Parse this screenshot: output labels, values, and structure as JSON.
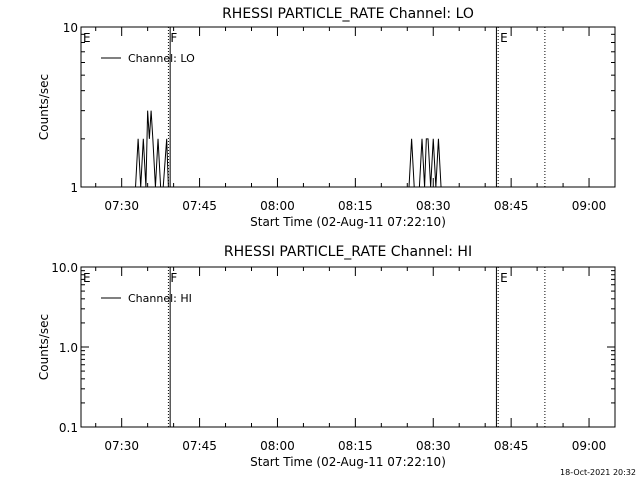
{
  "colors": {
    "background": "#ffffff",
    "ink": "#000000"
  },
  "footer": {
    "timestamp": "18-Oct-2021 20:32"
  },
  "chart_data": [
    {
      "type": "line",
      "title": "RHESSI PARTICLE_RATE Channel: LO",
      "xlabel": "Start Time (02-Aug-11 07:22:10)",
      "ylabel": "Counts/sec",
      "yscale": "log",
      "ylim": [
        1,
        10
      ],
      "y_tick_labels": [
        "1",
        "10"
      ],
      "y_tick_values": [
        1,
        10
      ],
      "xlim": [
        "07:22:10",
        "09:05:00"
      ],
      "x_tick_labels": [
        "07:30",
        "07:45",
        "08:00",
        "08:15",
        "08:30",
        "08:45",
        "09:00"
      ],
      "legend": {
        "position": "top-left",
        "entries": [
          "Channel: LO"
        ]
      },
      "markers": [
        {
          "label": "E",
          "time": "07:22:10",
          "style": "none"
        },
        {
          "label": "F",
          "time": "07:39:00",
          "style": "dotted"
        },
        {
          "label": "",
          "time": "07:39:20",
          "style": "solid"
        },
        {
          "label": "",
          "time": "08:42:10",
          "style": "solid"
        },
        {
          "label": "E",
          "time": "08:42:30",
          "style": "dotted"
        },
        {
          "label": "",
          "time": "08:51:30",
          "style": "dotted"
        }
      ],
      "series": [
        {
          "name": "Channel: LO",
          "x": [
            "07:32:40",
            "07:33:10",
            "07:33:40",
            "07:34:10",
            "07:34:40",
            "07:35:00",
            "07:35:20",
            "07:35:40",
            "07:36:00",
            "07:36:30",
            "07:37:00",
            "07:37:30",
            "07:38:00",
            "07:38:40",
            "07:39:00",
            "08:25:20",
            "08:25:50",
            "08:26:20",
            "08:26:50",
            "08:27:20",
            "08:27:50",
            "08:28:20",
            "08:28:40",
            "08:29:00",
            "08:29:30",
            "08:30:00",
            "08:30:30",
            "08:31:00",
            "08:31:30"
          ],
          "values": [
            1,
            2,
            1,
            2,
            1,
            3,
            2,
            3,
            2,
            1,
            2,
            1,
            1,
            2,
            1,
            1,
            2,
            1,
            1,
            1,
            2,
            1,
            2,
            2,
            1,
            2,
            1,
            2,
            1
          ]
        }
      ]
    },
    {
      "type": "line",
      "title": "RHESSI PARTICLE_RATE Channel: HI",
      "xlabel": "Start Time (02-Aug-11 07:22:10)",
      "ylabel": "Counts/sec",
      "yscale": "log",
      "ylim": [
        0.1,
        10
      ],
      "y_tick_labels": [
        "0.1",
        "1.0",
        "10.0"
      ],
      "y_tick_values": [
        0.1,
        1,
        10
      ],
      "xlim": [
        "07:22:10",
        "09:05:00"
      ],
      "x_tick_labels": [
        "07:30",
        "07:45",
        "08:00",
        "08:15",
        "08:30",
        "08:45",
        "09:00"
      ],
      "legend": {
        "position": "top-left",
        "entries": [
          "Channel: HI"
        ]
      },
      "markers": [
        {
          "label": "E",
          "time": "07:22:10",
          "style": "none"
        },
        {
          "label": "F",
          "time": "07:39:00",
          "style": "dotted"
        },
        {
          "label": "",
          "time": "07:39:20",
          "style": "solid"
        },
        {
          "label": "",
          "time": "08:42:10",
          "style": "solid"
        },
        {
          "label": "E",
          "time": "08:42:30",
          "style": "dotted"
        },
        {
          "label": "",
          "time": "08:51:30",
          "style": "dotted"
        }
      ],
      "series": [
        {
          "name": "Channel: HI",
          "x": [],
          "values": []
        }
      ]
    }
  ]
}
